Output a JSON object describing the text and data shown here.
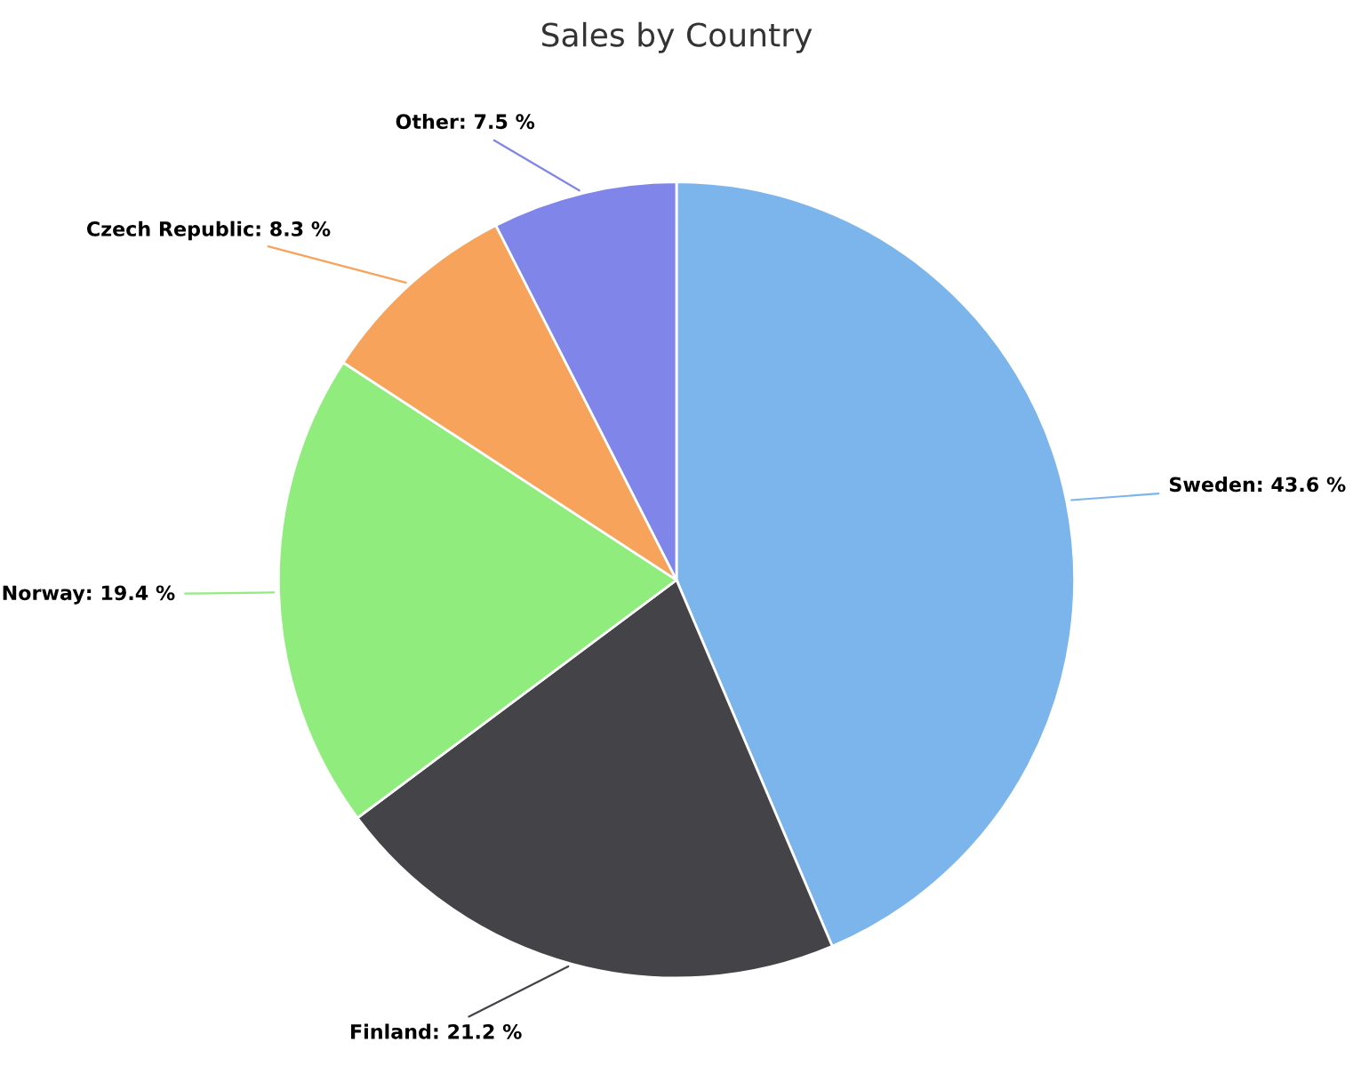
{
  "chart_data": {
    "type": "pie",
    "title": "Sales by Country",
    "categories": [
      "Sweden",
      "Finland",
      "Norway",
      "Czech Republic",
      "Other"
    ],
    "values": [
      43.6,
      21.2,
      19.4,
      8.3,
      7.5
    ],
    "value_labels": [
      "43.6 %",
      "21.2 %",
      "19.4 %",
      "8.3 %",
      "7.5 %"
    ],
    "colors": [
      "#7cb5ec",
      "#434348",
      "#90ed7d",
      "#f7a35c",
      "#8085e9"
    ],
    "legend": false
  }
}
